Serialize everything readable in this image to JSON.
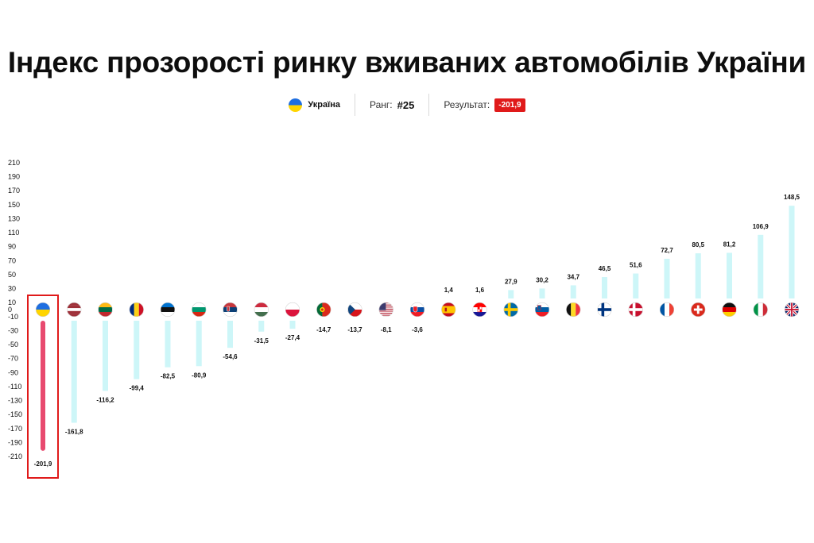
{
  "title": "Індекс прозорості ринку вживаних автомобілів України",
  "highlight": {
    "country": "Україна",
    "rank_label": "Ранг:",
    "rank_value": "#25",
    "result_label": "Результат:",
    "result_value": "-201,9"
  },
  "colors": {
    "bar": "#cdf6f8",
    "highlight_bar": "#e84a6f",
    "highlight_frame": "#e01a1a",
    "badge": "#e01a1a"
  },
  "chart_data": {
    "type": "bar",
    "title": "",
    "xlabel": "",
    "ylabel": "",
    "ylim": [
      -210,
      210
    ],
    "y_ticks": [
      210,
      190,
      170,
      150,
      130,
      110,
      90,
      70,
      50,
      30,
      10,
      0,
      -10,
      -30,
      -50,
      -70,
      -90,
      -110,
      -130,
      -150,
      -170,
      -190,
      -210
    ],
    "grid": false,
    "categories": [
      "Україна",
      "Латвія",
      "Литва",
      "Румунія",
      "Естонія",
      "Болгарія",
      "Сербія",
      "Угорщина",
      "Польща",
      "Португалія",
      "Чехія",
      "США",
      "Словаччина",
      "Іспанія",
      "Хорватія",
      "Швеція",
      "Словенія",
      "Бельгія",
      "Фінляндія",
      "Данія",
      "Франція",
      "Швейцарія",
      "Німеччина",
      "Італія",
      "Велика Британія"
    ],
    "flags": [
      "ua",
      "lv",
      "lt",
      "ro",
      "ee",
      "bg",
      "rs",
      "hu",
      "pl",
      "pt",
      "cz",
      "us",
      "sk",
      "es",
      "hr",
      "se",
      "si",
      "be",
      "fi",
      "dk",
      "fr",
      "ch",
      "de",
      "it",
      "gb"
    ],
    "values": [
      -201.9,
      -161.8,
      -116.2,
      -99.4,
      -82.5,
      -80.9,
      -54.6,
      -31.5,
      -27.4,
      -14.7,
      -13.7,
      -8.1,
      -3.6,
      1.4,
      1.6,
      27.9,
      30.2,
      34.7,
      46.5,
      51.6,
      72.7,
      80.5,
      81.2,
      106.9,
      148.5
    ],
    "value_labels": [
      "-201,9",
      "-161,8",
      "-116,2",
      "-99,4",
      "-82,5",
      "-80,9",
      "-54,6",
      "-31,5",
      "-27,4",
      "-14,7",
      "-13,7",
      "-8,1",
      "-3,6",
      "1,4",
      "1,6",
      "27,9",
      "30,2",
      "34,7",
      "46,5",
      "51,6",
      "72,7",
      "80,5",
      "81,2",
      "106,9",
      "148,5"
    ],
    "highlight_index": 0
  }
}
